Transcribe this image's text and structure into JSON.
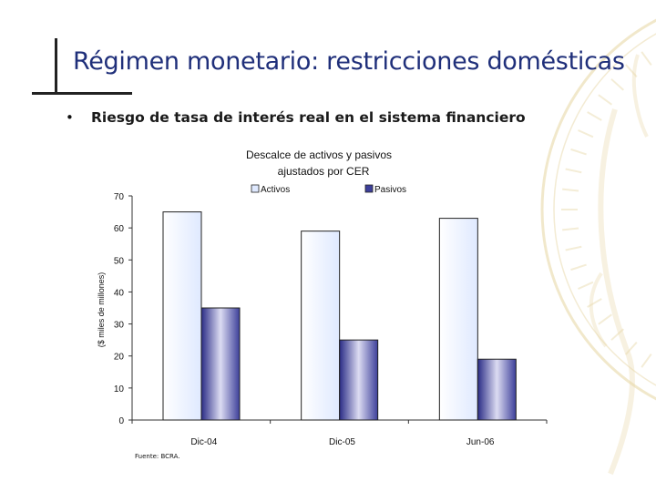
{
  "slide": {
    "title": "Régimen monetario: restricciones domésticas",
    "bullet": "Riesgo de tasa de interés real en el sistema financiero",
    "source": "Fuente: BCRA."
  },
  "colors": {
    "title": "#1f2f7a",
    "activos": "#dfe9ff",
    "pasivos": "#3d3f9a",
    "coin": "#e7d8a8"
  },
  "chart_data": {
    "type": "bar",
    "title": "Descalce de activos y pasivos",
    "subtitle": "ajustados por CER",
    "ylabel": "($ miles de millones)",
    "xlabel": "",
    "categories": [
      "Dic-04",
      "Dic-05",
      "Jun-06"
    ],
    "series": [
      {
        "name": "Activos",
        "values": [
          65,
          59,
          63
        ]
      },
      {
        "name": "Pasivos",
        "values": [
          35,
          25,
          19
        ]
      }
    ],
    "ylim": [
      0,
      70
    ],
    "yticks": [
      0,
      10,
      20,
      30,
      40,
      50,
      60,
      70
    ],
    "legend": "top",
    "grid": false
  }
}
